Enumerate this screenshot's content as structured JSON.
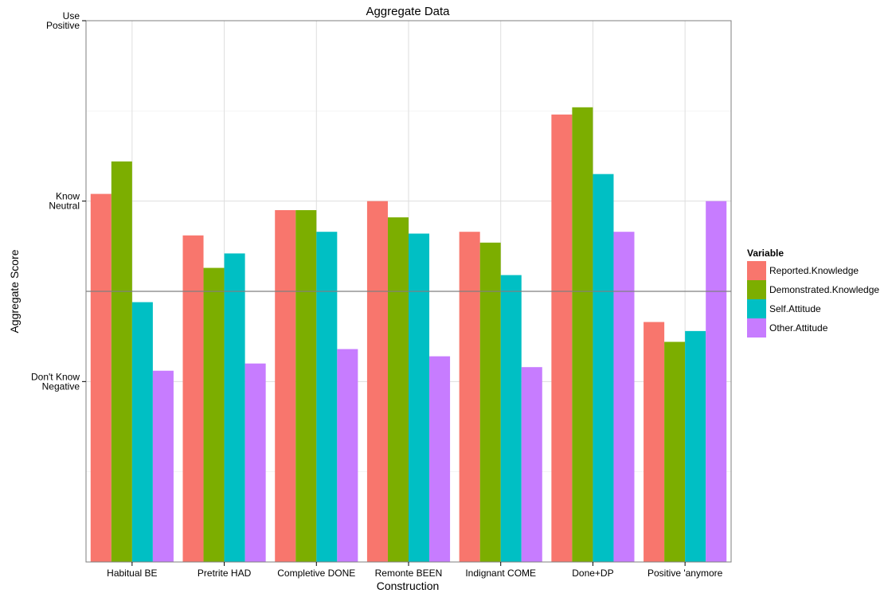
{
  "chart_data": {
    "type": "bar",
    "title": "Aggregate Data",
    "xlabel": "Construction",
    "ylabel": "Aggregate Score",
    "categories": [
      "Habitual BE",
      "Pretrite HAD",
      "Completive DONE",
      "Remonte BEEN",
      "Indignant COME",
      "Done+DP",
      "Positive 'anymore"
    ],
    "ylim": [
      -1.0,
      2.0
    ],
    "y_ticks": [
      {
        "value": 0.0,
        "lines": [
          "Don't Know",
          "Negative"
        ]
      },
      {
        "value": 1.0,
        "lines": [
          "Know",
          "Neutral"
        ]
      },
      {
        "value": 2.0,
        "lines": [
          "Use",
          "Positive"
        ]
      }
    ],
    "reference_line": 0.5,
    "grid": true,
    "legend": {
      "title": "Variable",
      "position": "right"
    },
    "series": [
      {
        "name": "Reported.Knowledge",
        "color": "#F8766D",
        "values": [
          1.04,
          0.81,
          0.95,
          1.0,
          0.83,
          1.48,
          0.33
        ]
      },
      {
        "name": "Demonstrated.Knowledge",
        "color": "#7CAE00",
        "values": [
          1.22,
          0.63,
          0.95,
          0.91,
          0.77,
          1.52,
          0.22
        ]
      },
      {
        "name": "Self.Attitude",
        "color": "#00BFC4",
        "values": [
          0.44,
          0.71,
          0.83,
          0.82,
          0.59,
          1.15,
          0.28
        ]
      },
      {
        "name": "Other.Attitude",
        "color": "#C77CFF",
        "values": [
          0.06,
          0.1,
          0.18,
          0.14,
          0.08,
          0.83,
          1.0
        ]
      }
    ]
  }
}
